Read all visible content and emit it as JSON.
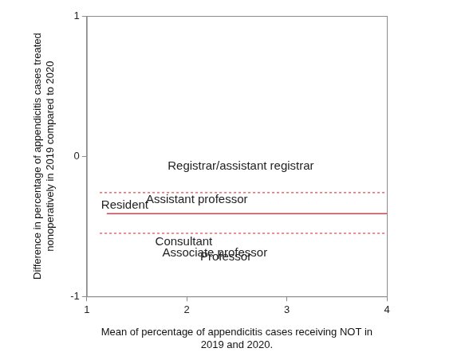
{
  "chart_data": {
    "type": "scatter",
    "marker": "text",
    "x": [
      2.54,
      1.38,
      2.1,
      1.97,
      2.28,
      2.39
    ],
    "values": [
      -0.07,
      -0.35,
      -0.31,
      -0.61,
      -0.69,
      -0.72
    ],
    "point_labels": [
      "Registrar/assistant registrar",
      "Resident",
      "Assistant professor",
      "Consultant",
      "Associate professor",
      "Professor"
    ],
    "lines": [
      {
        "y": -0.41,
        "x": [
          1.2,
          4
        ],
        "color": "#e0404a",
        "line_style": "solid"
      },
      {
        "y": -0.26,
        "x": [
          1.13,
          4
        ],
        "color": "#e0404a",
        "line_style": "dotted"
      },
      {
        "y": -0.55,
        "x": [
          1.13,
          4
        ],
        "color": "#e0404a",
        "line_style": "dotted"
      }
    ],
    "x_label": [
      "Mean of percentage of appendicitis cases receiving NOT in",
      "2019 and 2020."
    ],
    "y_label": [
      "Difference in percentage of appendicitis cases treated",
      "nonoperatively in 2019 compared to 2020"
    ],
    "xlim": [
      1,
      4
    ],
    "xticks": [
      1,
      2,
      3,
      4
    ],
    "ylim": [
      -1,
      1
    ],
    "yticks": [
      -1,
      0,
      1
    ],
    "grid": false
  }
}
